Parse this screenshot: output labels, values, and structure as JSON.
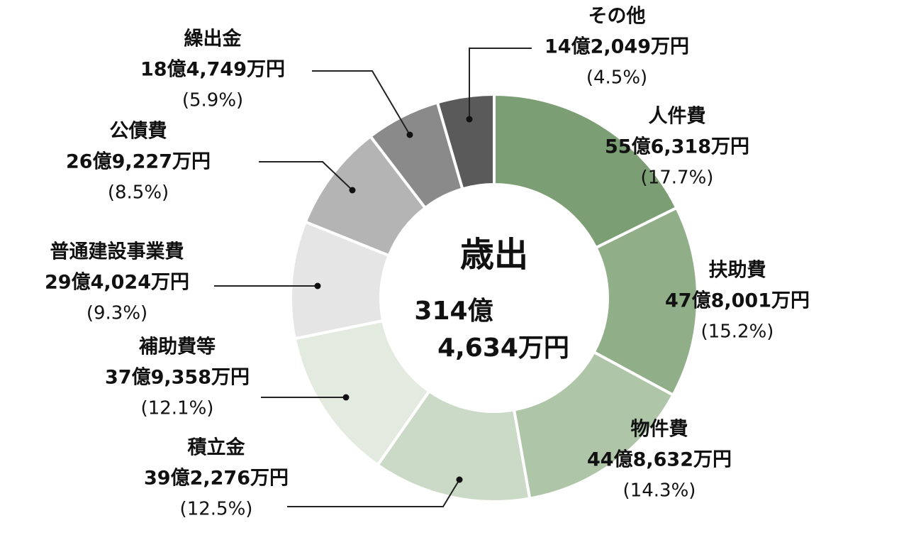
{
  "chart_data": {
    "type": "donut",
    "title": "歳出",
    "center_lines": [
      "314億",
      "4,634万円"
    ],
    "categories": [
      "人件費",
      "扶助費",
      "物件費",
      "積立金",
      "補助費等",
      "普通建設事業費",
      "公債費",
      "繰出金",
      "その他"
    ],
    "values": [
      17.7,
      15.2,
      14.3,
      12.5,
      12.1,
      9.3,
      8.5,
      5.9,
      4.5
    ],
    "value_labels": [
      "(17.7%)",
      "(15.2%)",
      "(14.3%)",
      "(12.5%)",
      "(12.1%)",
      "(9.3%)",
      "(8.5%)",
      "(5.9%)",
      "(4.5%)"
    ],
    "amount_labels": [
      "55億6,318万円",
      "47億8,001万円",
      "44億8,632万円",
      "39億2,276万円",
      "37億9,358万円",
      "29億4,024万円",
      "26億9,227万円",
      "18億4,749万円",
      "14億2,049万円"
    ],
    "colors": [
      "#7c9e74",
      "#90ae88",
      "#afc5a8",
      "#cbdac6",
      "#e3ebe0",
      "#e5e5e5",
      "#b4b4b4",
      "#8a8a8a",
      "#5a5a5a"
    ]
  }
}
